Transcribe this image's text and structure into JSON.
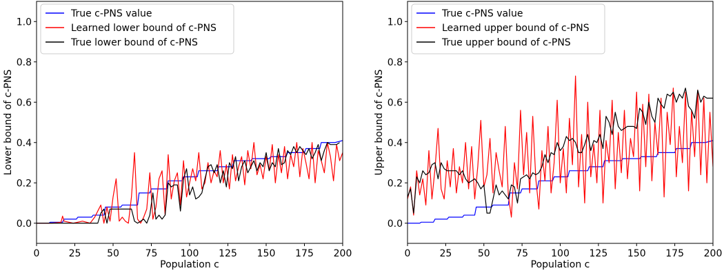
{
  "chart_data": [
    {
      "type": "line",
      "title": "",
      "xlabel": "Population c",
      "ylabel": "Lower bound of c-PNS",
      "xlim": [
        0,
        200
      ],
      "ylim": [
        -0.1,
        1.1
      ],
      "xticks": [
        0,
        25,
        50,
        75,
        100,
        125,
        150,
        175,
        200
      ],
      "yticks": [
        0.0,
        0.2,
        0.4,
        0.6,
        0.8,
        1.0
      ],
      "xtick_labels": [
        "0",
        "25",
        "50",
        "75",
        "100",
        "125",
        "150",
        "175",
        "200"
      ],
      "ytick_labels": [
        "0.0",
        "0.2",
        "0.4",
        "0.6",
        "0.8",
        "1.0"
      ],
      "grid": false,
      "legend_position": "top-left",
      "series": [
        {
          "name": "True c-PNS value",
          "color": "#0000ff",
          "x": [
            0,
            8,
            9,
            17,
            18,
            26,
            27,
            36,
            37,
            44,
            45,
            55,
            56,
            66,
            67,
            74,
            75,
            85,
            86,
            95,
            96,
            105,
            106,
            118,
            119,
            128,
            129,
            140,
            141,
            152,
            153,
            163,
            164,
            175,
            176,
            185,
            186,
            195,
            200
          ],
          "y": [
            0.0,
            0.0,
            0.005,
            0.005,
            0.02,
            0.02,
            0.03,
            0.03,
            0.04,
            0.04,
            0.08,
            0.08,
            0.09,
            0.09,
            0.15,
            0.15,
            0.17,
            0.17,
            0.21,
            0.21,
            0.23,
            0.23,
            0.26,
            0.26,
            0.28,
            0.28,
            0.31,
            0.31,
            0.32,
            0.32,
            0.33,
            0.33,
            0.35,
            0.35,
            0.37,
            0.37,
            0.4,
            0.4,
            0.41
          ]
        },
        {
          "name": "Learned lower bound of c-PNS",
          "color": "#ff0000",
          "x": [
            0,
            10,
            16,
            17,
            18,
            24,
            30,
            35,
            38,
            40,
            42,
            44,
            46,
            48,
            50,
            52,
            54,
            56,
            58,
            60,
            62,
            64,
            66,
            68,
            70,
            72,
            74,
            76,
            78,
            80,
            82,
            84,
            86,
            88,
            90,
            92,
            94,
            96,
            98,
            100,
            102,
            104,
            106,
            108,
            110,
            112,
            114,
            116,
            118,
            120,
            122,
            124,
            126,
            128,
            130,
            132,
            134,
            136,
            138,
            140,
            142,
            144,
            146,
            148,
            150,
            152,
            154,
            156,
            158,
            160,
            162,
            164,
            166,
            168,
            170,
            172,
            174,
            176,
            178,
            180,
            182,
            184,
            186,
            188,
            190,
            192,
            194,
            196,
            198,
            200
          ],
          "y": [
            0.0,
            0.0,
            0.005,
            0.035,
            0.01,
            0.0,
            0.01,
            0.0,
            0.03,
            0.06,
            0.09,
            0.0,
            0.08,
            0.01,
            0.13,
            0.22,
            0.01,
            0.03,
            0.01,
            0.0,
            0.13,
            0.35,
            0.02,
            0.0,
            0.03,
            0.07,
            0.25,
            0.02,
            0.08,
            0.22,
            0.26,
            0.04,
            0.34,
            0.12,
            0.21,
            0.25,
            0.09,
            0.31,
            0.13,
            0.2,
            0.27,
            0.21,
            0.35,
            0.17,
            0.2,
            0.3,
            0.2,
            0.26,
            0.23,
            0.36,
            0.2,
            0.29,
            0.17,
            0.34,
            0.21,
            0.28,
            0.33,
            0.19,
            0.36,
            0.27,
            0.4,
            0.24,
            0.29,
            0.22,
            0.33,
            0.26,
            0.39,
            0.2,
            0.34,
            0.25,
            0.38,
            0.22,
            0.34,
            0.28,
            0.4,
            0.23,
            0.37,
            0.3,
            0.22,
            0.4,
            0.2,
            0.36,
            0.31,
            0.25,
            0.4,
            0.33,
            0.21,
            0.39,
            0.31,
            0.35
          ]
        },
        {
          "name": "True lower bound of c-PNS",
          "color": "#000000",
          "x": [
            0,
            40,
            42,
            44,
            46,
            48,
            62,
            64,
            66,
            68,
            70,
            72,
            74,
            76,
            78,
            80,
            82,
            84,
            86,
            88,
            90,
            92,
            94,
            96,
            98,
            100,
            102,
            104,
            106,
            108,
            110,
            112,
            114,
            116,
            118,
            120,
            122,
            124,
            126,
            128,
            130,
            132,
            134,
            136,
            138,
            140,
            142,
            144,
            146,
            148,
            150,
            152,
            154,
            156,
            158,
            160,
            162,
            164,
            166,
            168,
            170,
            172,
            174,
            176,
            178,
            180,
            182,
            184,
            186,
            188,
            190,
            192,
            194,
            196,
            198
          ],
          "y": [
            0.0,
            0.0,
            0.05,
            0.07,
            0.0,
            0.07,
            0.07,
            0.01,
            0.0,
            0.01,
            0.02,
            0.0,
            0.04,
            0.15,
            0.02,
            0.04,
            0.02,
            0.04,
            0.2,
            0.18,
            0.19,
            0.19,
            0.06,
            0.22,
            0.27,
            0.14,
            0.18,
            0.12,
            0.13,
            0.15,
            0.22,
            0.28,
            0.29,
            0.25,
            0.29,
            0.2,
            0.26,
            0.18,
            0.3,
            0.27,
            0.33,
            0.21,
            0.28,
            0.31,
            0.25,
            0.28,
            0.31,
            0.26,
            0.3,
            0.28,
            0.35,
            0.26,
            0.3,
            0.28,
            0.37,
            0.29,
            0.3,
            0.36,
            0.34,
            0.38,
            0.35,
            0.38,
            0.36,
            0.34,
            0.37,
            0.32,
            0.35,
            0.39,
            0.31,
            0.36,
            0.4,
            0.39,
            0.39,
            0.39,
            0.4
          ]
        }
      ]
    },
    {
      "type": "line",
      "title": "",
      "xlabel": "Population c",
      "ylabel": "Upper bound of c-PNS",
      "xlim": [
        0,
        200
      ],
      "ylim": [
        -0.1,
        1.1
      ],
      "xticks": [
        0,
        25,
        50,
        75,
        100,
        125,
        150,
        175,
        200
      ],
      "yticks": [
        0.0,
        0.2,
        0.4,
        0.6,
        0.8,
        1.0
      ],
      "xtick_labels": [
        "0",
        "25",
        "50",
        "75",
        "100",
        "125",
        "150",
        "175",
        "200"
      ],
      "ytick_labels": [
        "0.0",
        "0.2",
        "0.4",
        "0.6",
        "0.8",
        "1.0"
      ],
      "grid": false,
      "legend_position": "top-left",
      "series": [
        {
          "name": "True c-PNS value",
          "color": "#0000ff",
          "x": [
            0,
            8,
            9,
            17,
            18,
            26,
            27,
            36,
            37,
            44,
            45,
            55,
            56,
            66,
            67,
            74,
            75,
            85,
            86,
            95,
            96,
            105,
            106,
            118,
            119,
            128,
            129,
            140,
            141,
            152,
            153,
            163,
            164,
            175,
            176,
            185,
            186,
            195,
            200
          ],
          "y": [
            0.0,
            0.0,
            0.005,
            0.005,
            0.02,
            0.02,
            0.03,
            0.03,
            0.04,
            0.04,
            0.08,
            0.08,
            0.09,
            0.09,
            0.15,
            0.15,
            0.17,
            0.17,
            0.21,
            0.21,
            0.23,
            0.23,
            0.26,
            0.26,
            0.28,
            0.28,
            0.31,
            0.31,
            0.32,
            0.32,
            0.33,
            0.33,
            0.35,
            0.35,
            0.37,
            0.37,
            0.4,
            0.4,
            0.41
          ]
        },
        {
          "name": "Learned upper bound of c-PNS",
          "color": "#ff0000",
          "x": [
            0,
            2,
            4,
            6,
            8,
            10,
            12,
            14,
            16,
            18,
            20,
            22,
            24,
            26,
            28,
            30,
            32,
            34,
            36,
            38,
            40,
            42,
            44,
            46,
            48,
            50,
            52,
            54,
            56,
            58,
            60,
            62,
            64,
            66,
            68,
            70,
            72,
            74,
            76,
            78,
            80,
            82,
            84,
            86,
            88,
            90,
            92,
            94,
            96,
            98,
            100,
            102,
            104,
            106,
            108,
            110,
            112,
            114,
            116,
            118,
            120,
            122,
            124,
            126,
            128,
            130,
            132,
            134,
            136,
            138,
            140,
            142,
            144,
            146,
            148,
            150,
            152,
            154,
            156,
            158,
            160,
            162,
            164,
            166,
            168,
            170,
            172,
            174,
            176,
            178,
            180,
            182,
            184,
            186,
            188,
            190,
            192,
            194,
            196,
            198,
            200
          ],
          "y": [
            0.12,
            0.18,
            0.04,
            0.26,
            0.14,
            0.22,
            0.09,
            0.36,
            0.12,
            0.27,
            0.47,
            0.17,
            0.12,
            0.31,
            0.18,
            0.37,
            0.15,
            0.28,
            0.2,
            0.4,
            0.17,
            0.38,
            0.12,
            0.28,
            0.51,
            0.18,
            0.24,
            0.42,
            0.15,
            0.35,
            0.26,
            0.18,
            0.48,
            0.14,
            0.03,
            0.3,
            0.17,
            0.56,
            0.24,
            0.45,
            0.15,
            0.53,
            0.22,
            0.07,
            0.36,
            0.21,
            0.48,
            0.15,
            0.3,
            0.61,
            0.2,
            0.37,
            0.15,
            0.52,
            0.29,
            0.73,
            0.18,
            0.44,
            0.1,
            0.6,
            0.23,
            0.39,
            0.2,
            0.56,
            0.1,
            0.41,
            0.3,
            0.61,
            0.17,
            0.45,
            0.25,
            0.56,
            0.22,
            0.42,
            0.33,
            0.65,
            0.16,
            0.59,
            0.28,
            0.64,
            0.21,
            0.5,
            0.34,
            0.62,
            0.13,
            0.55,
            0.39,
            0.67,
            0.23,
            0.48,
            0.3,
            0.65,
            0.16,
            0.56,
            0.33,
            0.66,
            0.24,
            0.62,
            0.2,
            0.55,
            0.28
          ]
        },
        {
          "name": "True upper bound of c-PNS",
          "color": "#000000",
          "x": [
            0,
            2,
            4,
            6,
            8,
            10,
            12,
            14,
            16,
            18,
            20,
            22,
            24,
            26,
            28,
            30,
            32,
            34,
            36,
            38,
            40,
            42,
            44,
            46,
            48,
            50,
            52,
            54,
            56,
            58,
            60,
            62,
            64,
            66,
            68,
            70,
            72,
            74,
            76,
            78,
            80,
            82,
            84,
            86,
            88,
            90,
            92,
            94,
            96,
            98,
            100,
            102,
            104,
            106,
            108,
            110,
            112,
            114,
            116,
            118,
            120,
            122,
            124,
            126,
            128,
            130,
            132,
            134,
            136,
            138,
            140,
            142,
            144,
            146,
            148,
            150,
            152,
            154,
            156,
            158,
            160,
            162,
            164,
            166,
            168,
            170,
            172,
            174,
            176,
            178,
            180,
            182,
            184,
            186,
            188,
            190,
            192,
            194,
            196,
            198,
            200
          ],
          "y": [
            0.13,
            0.17,
            0.05,
            0.23,
            0.2,
            0.26,
            0.24,
            0.25,
            0.29,
            0.3,
            0.22,
            0.3,
            0.27,
            0.26,
            0.26,
            0.26,
            0.26,
            0.24,
            0.26,
            0.22,
            0.2,
            0.21,
            0.22,
            0.2,
            0.17,
            0.19,
            0.05,
            0.05,
            0.12,
            0.19,
            0.14,
            0.16,
            0.14,
            0.12,
            0.19,
            0.18,
            0.1,
            0.22,
            0.23,
            0.24,
            0.22,
            0.25,
            0.24,
            0.25,
            0.28,
            0.34,
            0.3,
            0.35,
            0.34,
            0.4,
            0.36,
            0.38,
            0.43,
            0.41,
            0.42,
            0.4,
            0.35,
            0.35,
            0.39,
            0.44,
            0.36,
            0.41,
            0.4,
            0.44,
            0.37,
            0.53,
            0.5,
            0.44,
            0.55,
            0.48,
            0.46,
            0.47,
            0.48,
            0.48,
            0.48,
            0.47,
            0.57,
            0.55,
            0.49,
            0.6,
            0.53,
            0.5,
            0.62,
            0.59,
            0.57,
            0.64,
            0.63,
            0.65,
            0.6,
            0.64,
            0.62,
            0.67,
            0.58,
            0.56,
            0.52,
            0.66,
            0.6,
            0.63,
            0.62,
            0.62,
            0.62
          ]
        }
      ]
    }
  ]
}
